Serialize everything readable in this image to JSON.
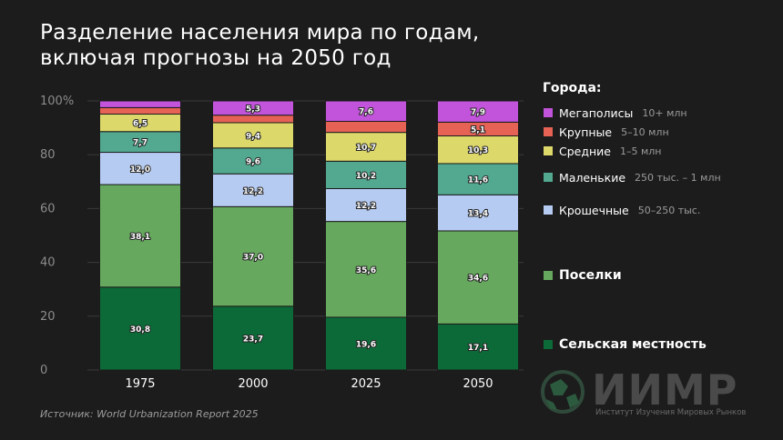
{
  "title_lines": [
    "Разделение населения мира по годам,",
    "включая прогнозы на 2050 год"
  ],
  "source": "Источник: World Urbanization Report 2025",
  "legend_title": "Города:",
  "chart_data": {
    "type": "bar",
    "stacked": true,
    "categories": [
      "1975",
      "2000",
      "2025",
      "2050"
    ],
    "ylim": [
      0,
      100
    ],
    "yticks": [
      "0",
      "20",
      "40",
      "60",
      "80",
      "100%"
    ],
    "grid": true,
    "series": [
      {
        "name": "Сельская местность",
        "color": "#0c6a38",
        "values": [
          30.8,
          23.7,
          19.6,
          17.1
        ],
        "labels": [
          "30,8",
          "23,7",
          "19,6",
          "17,1"
        ]
      },
      {
        "name": "Поселки",
        "color": "#66a85e",
        "values": [
          38.1,
          37.0,
          35.6,
          34.6
        ],
        "labels": [
          "38,1",
          "37,0",
          "35,6",
          "34,6"
        ]
      },
      {
        "name": "Крошечные",
        "range": "50–250 тыс.",
        "color": "#b6cbf1",
        "values": [
          12.0,
          12.2,
          12.2,
          13.4
        ],
        "labels": [
          "12,0",
          "12,2",
          "12,2",
          "13,4"
        ]
      },
      {
        "name": "Маленькие",
        "range": "250 тыс. – 1 млн",
        "color": "#52a990",
        "values": [
          7.7,
          9.6,
          10.2,
          11.6
        ],
        "labels": [
          "7,7",
          "9,6",
          "10,2",
          "11,6"
        ]
      },
      {
        "name": "Средние",
        "range": "1–5 млн",
        "color": "#dcd86a",
        "values": [
          6.5,
          9.4,
          10.7,
          10.3
        ],
        "labels": [
          "6,5",
          "9,4",
          "10,7",
          "10,3"
        ]
      },
      {
        "name": "Крупные",
        "range": "5–10 млн",
        "color": "#e56255",
        "values": [
          2.4,
          2.8,
          4.1,
          5.1
        ],
        "labels": [
          "",
          "",
          "",
          "5,1"
        ]
      },
      {
        "name": "Мегаполисы",
        "range": "10+ млн",
        "color": "#c253db",
        "values": [
          2.5,
          5.3,
          7.6,
          7.9
        ],
        "labels": [
          "",
          "5,3",
          "7,6",
          "7,9"
        ]
      }
    ]
  },
  "legend_top_order": [
    6,
    5,
    4,
    3,
    2
  ],
  "legend_bottom_order": [
    1,
    0
  ],
  "logo": {
    "text": "ИИМР",
    "subtitle": "Институт Изучения Мировых Рынков"
  }
}
